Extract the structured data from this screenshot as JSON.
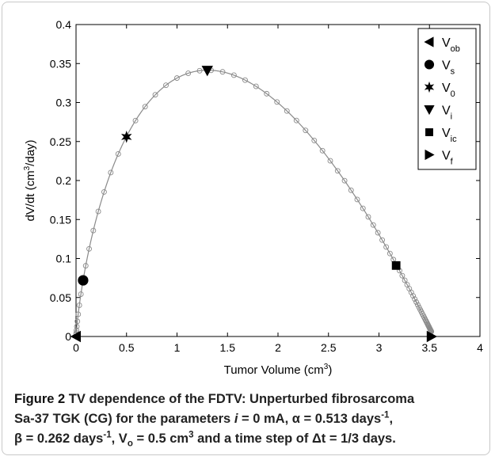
{
  "chart_data": {
    "type": "scatter",
    "xlabel": "Tumor Volume (cm",
    "xlabel_sup": "3",
    "xlabel_end": ")",
    "ylabel": "dV/dt (cm",
    "ylabel_sup": "3",
    "ylabel_end": "/day)",
    "xlim": [
      0,
      4
    ],
    "ylim": [
      0,
      0.4
    ],
    "xticks": [
      "0",
      "0.5",
      "1",
      "1.5",
      "2",
      "2.5",
      "3",
      "3.5",
      "4"
    ],
    "yticks": [
      "0",
      "0.05",
      "0.1",
      "0.15",
      "0.2",
      "0.25",
      "0.3",
      "0.35",
      "0.4"
    ],
    "curve": {
      "alpha": 0.513,
      "beta": 0.262,
      "V0": 0.5,
      "dt": 0.3333,
      "Vmax": 3.52,
      "Vmin": 0.001
    },
    "markers": [
      {
        "name": "V",
        "sub": "ob",
        "symbol": "triangle-left",
        "x": 0.0,
        "y": 0.0
      },
      {
        "name": "V",
        "sub": "s",
        "symbol": "circle",
        "x": 0.07,
        "y": 0.072
      },
      {
        "name": "V",
        "sub": "0",
        "symbol": "star",
        "x": 0.5,
        "y": 0.256
      },
      {
        "name": "V",
        "sub": "i",
        "symbol": "triangle-down",
        "x": 1.3,
        "y": 0.341
      },
      {
        "name": "V",
        "sub": "ic",
        "symbol": "square",
        "x": 3.17,
        "y": 0.091
      },
      {
        "name": "V",
        "sub": "f",
        "symbol": "triangle-right",
        "x": 3.52,
        "y": 0.0
      }
    ],
    "legend_position": "top-right",
    "colors": {
      "curve": "#8a8a8a",
      "marker": "#000000",
      "hollow": "#8a8a8a"
    }
  },
  "caption": {
    "label": "Figure 2",
    "line1": " TV dependence of the FDTV: Unperturbed fibrosarcoma",
    "line2a": "Sa-37 TGK (CG) for the parameters ",
    "line2_i": "i",
    "line2b": " = 0 mA, α = 0.513 days",
    "line2_sup": "-1",
    "line2c": ",",
    "line3a": "β = 0.262 days",
    "line3_sup1": "-1",
    "line3b": ", V",
    "line3_sub": "o",
    "line3c": " = 0.5 cm",
    "line3_sup2": "3",
    "line3d": " and a time step of Δt = 1/3 days."
  }
}
